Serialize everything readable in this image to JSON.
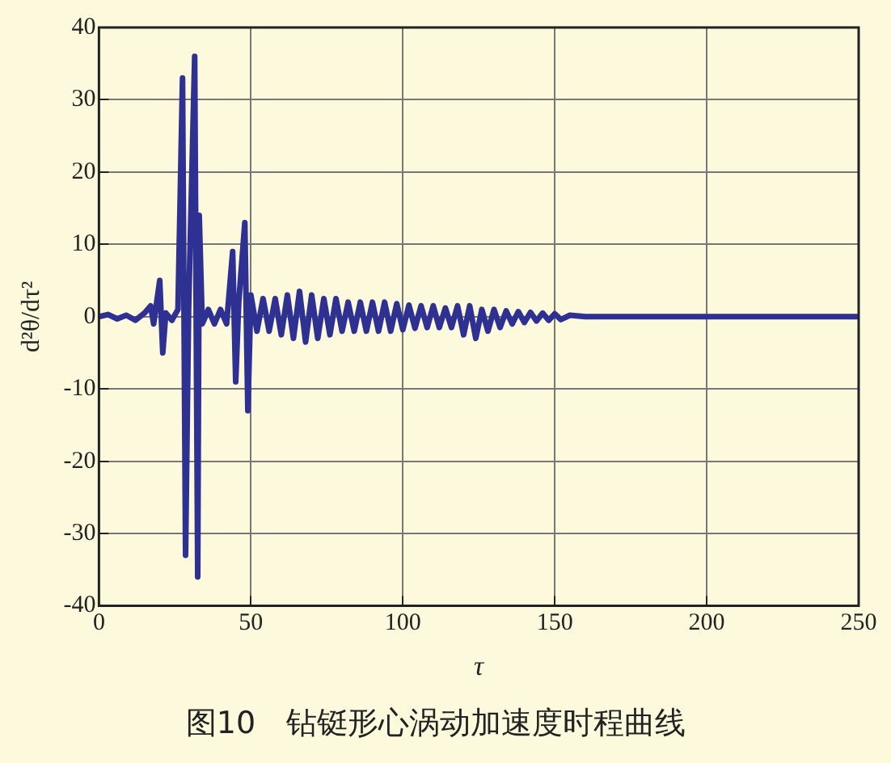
{
  "chart_data": {
    "type": "line",
    "title": "图10　钻铤形心涡动加速度时程曲线",
    "xlabel": "τ",
    "ylabel": "d²θ/dτ²",
    "xlim": [
      0,
      250
    ],
    "xticks": [
      0,
      50,
      100,
      150,
      200,
      250
    ],
    "ylim": [
      -40,
      40
    ],
    "yticks": [
      -40,
      -30,
      -20,
      -10,
      0,
      10,
      20,
      30,
      40
    ],
    "grid": true,
    "legend": false,
    "marker": "none",
    "line_style": "solid",
    "series": [
      {
        "color": "#2e3192",
        "x": [
          0,
          3,
          6,
          9,
          12,
          15,
          17,
          18,
          20,
          21,
          22,
          24,
          26,
          27.5,
          28.5,
          29.5,
          31.5,
          32.5,
          33,
          34,
          36,
          38,
          40,
          42,
          44,
          45,
          46,
          48,
          49,
          50,
          52,
          54,
          56,
          58,
          60,
          62,
          64,
          66,
          68,
          70,
          72,
          74,
          76,
          78,
          80,
          82,
          84,
          86,
          88,
          90,
          92,
          94,
          96,
          98,
          100,
          102,
          104,
          106,
          108,
          110,
          112,
          114,
          116,
          118,
          120,
          122,
          124,
          126,
          128,
          130,
          132,
          134,
          136,
          138,
          140,
          142,
          144,
          146,
          148,
          150,
          152,
          155,
          160,
          250
        ],
        "values": [
          0,
          0.3,
          -0.3,
          0.2,
          -0.5,
          0.5,
          1.5,
          -1,
          5,
          -5,
          0.5,
          -0.5,
          1,
          33,
          -33,
          1,
          36,
          -36,
          14,
          -1,
          1,
          -1,
          1,
          -1,
          9,
          -9,
          2,
          13,
          -13,
          3,
          -2,
          2.5,
          -2,
          2.5,
          -2.5,
          3,
          -3,
          3.5,
          -3.5,
          3,
          -3,
          2.5,
          -2.5,
          2.5,
          -2,
          2,
          -2,
          2,
          -2,
          2,
          -2,
          2,
          -2,
          1.8,
          -1.8,
          1.6,
          -1.6,
          1.5,
          -1.5,
          1.5,
          -1.5,
          1.2,
          -1.5,
          1.5,
          -2.5,
          1.5,
          -3,
          1,
          -2,
          1,
          -1.5,
          0.8,
          -1,
          0.7,
          -0.8,
          0.6,
          -0.6,
          0.5,
          -0.5,
          0.4,
          -0.4,
          0.2,
          0,
          0
        ]
      }
    ]
  }
}
